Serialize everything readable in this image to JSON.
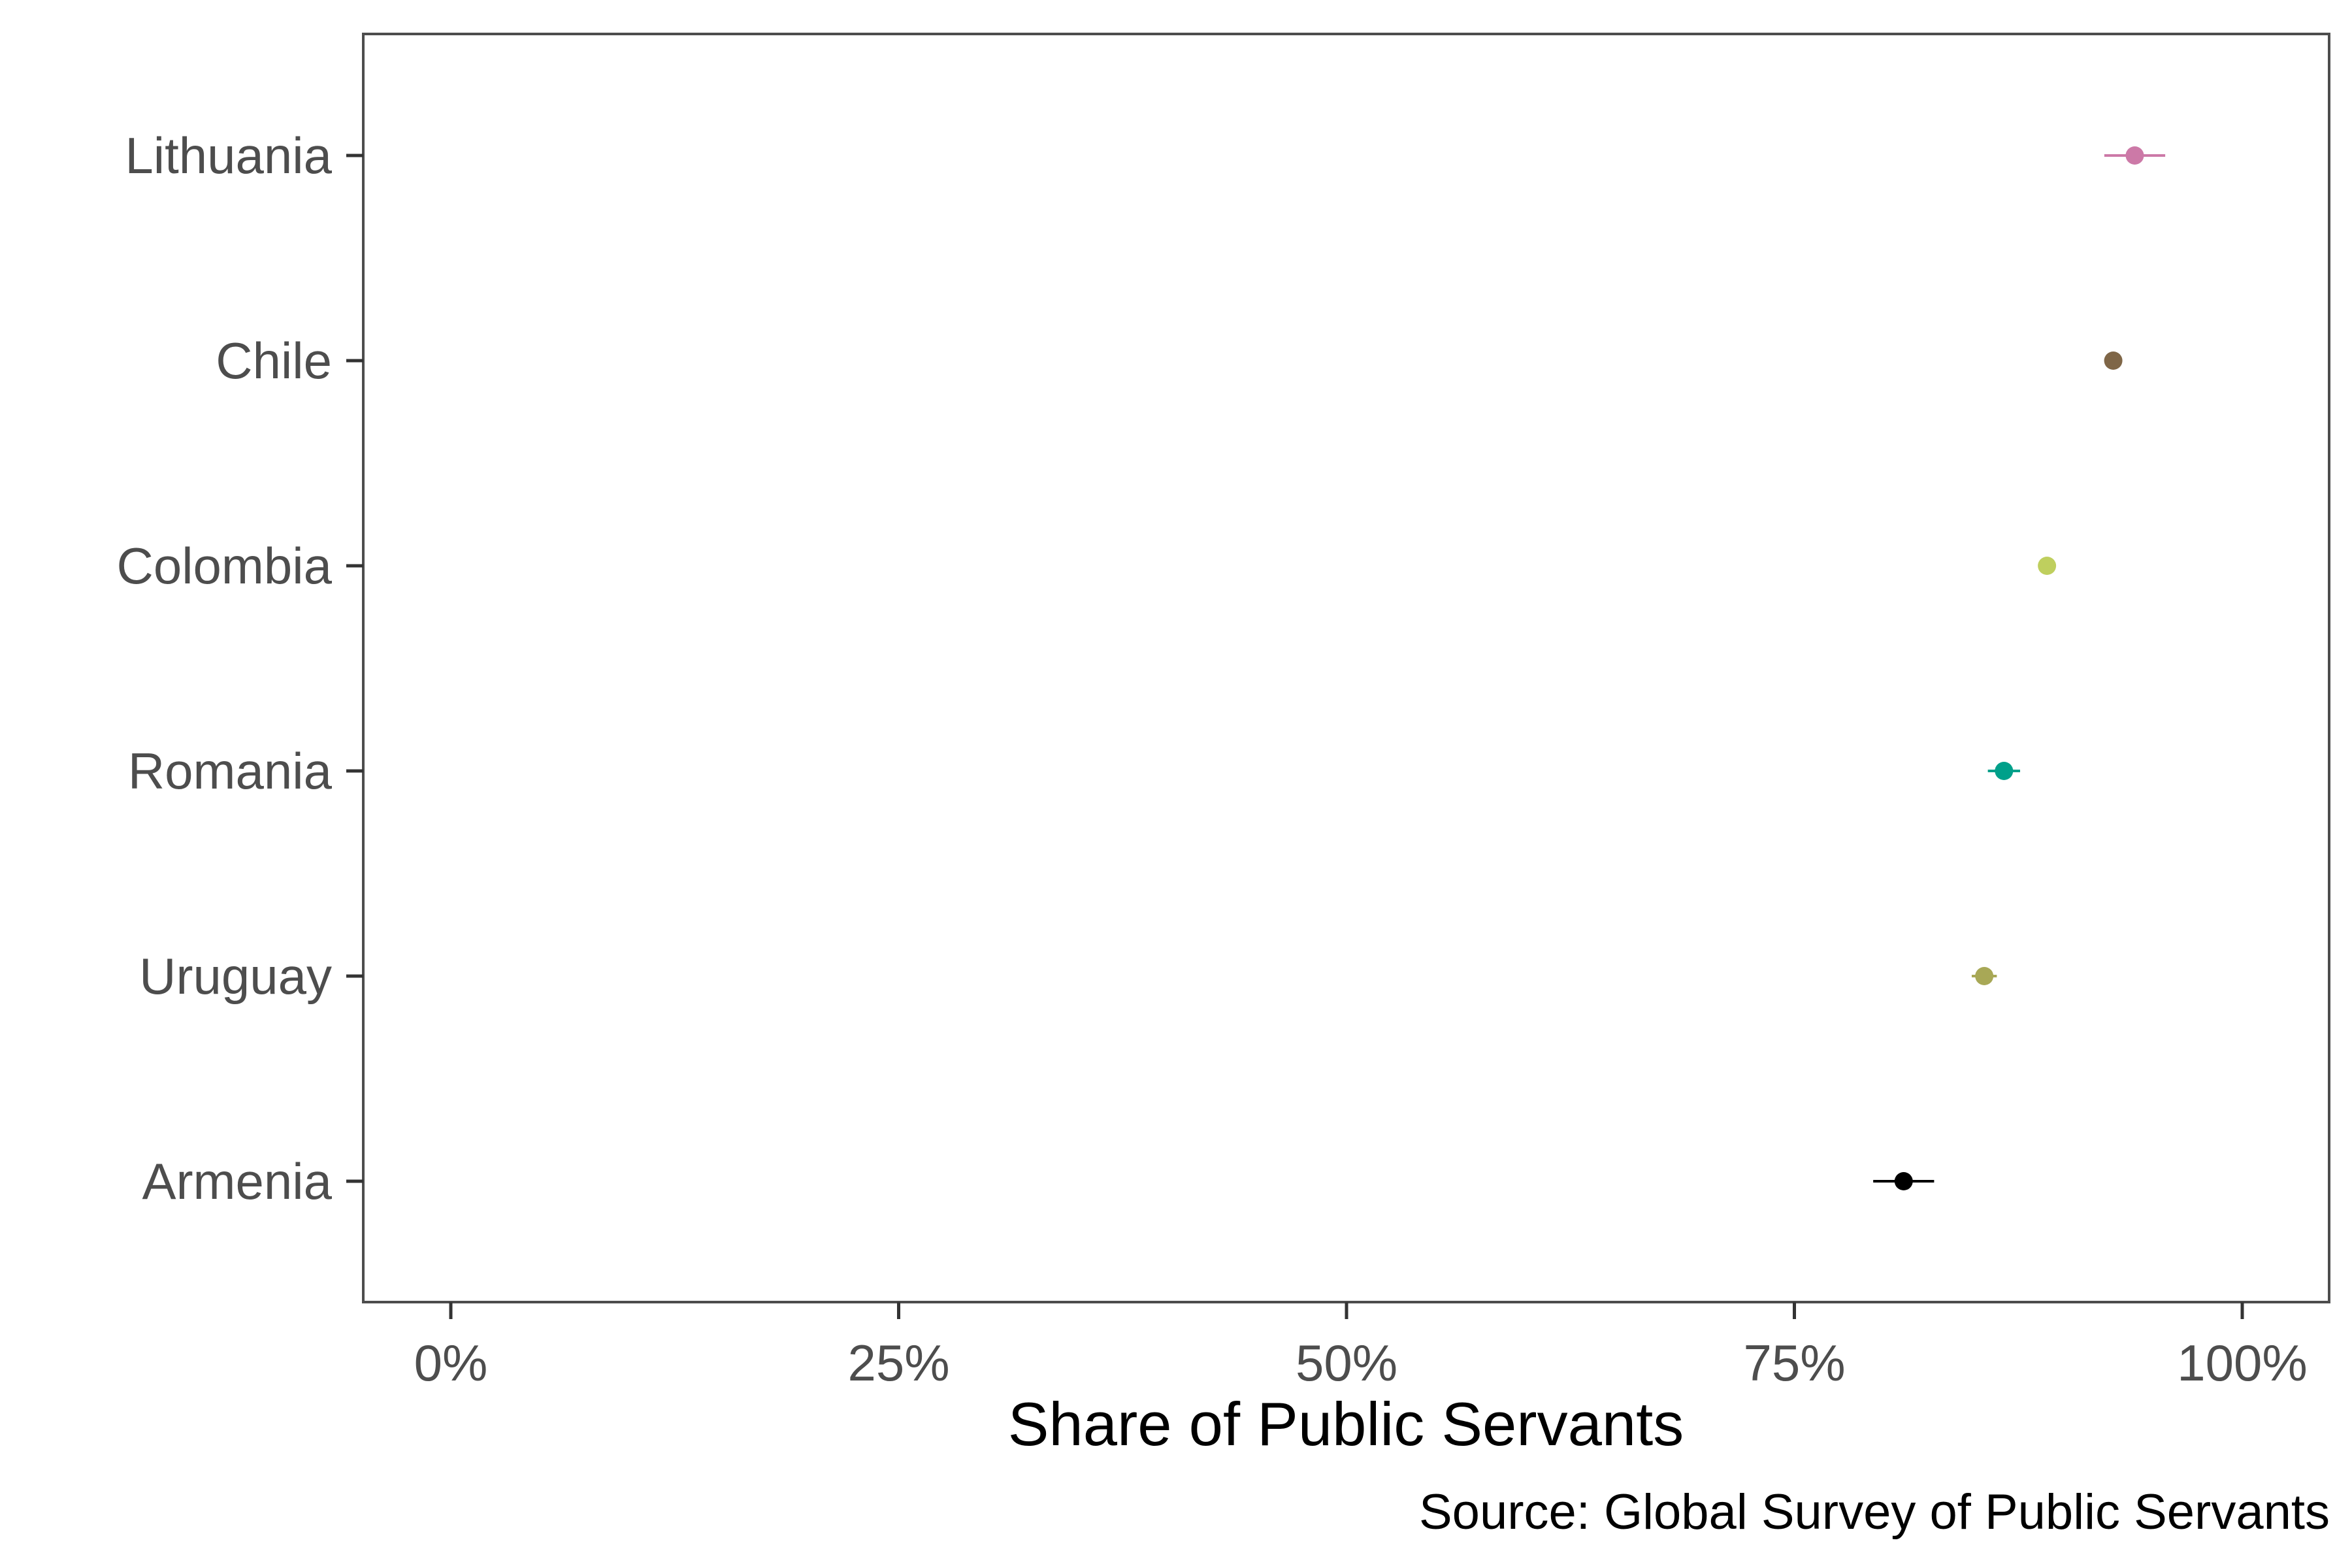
{
  "chart_data": {
    "type": "scatter",
    "subtype": "point-range (dot with error bars)",
    "title": "",
    "xlabel": "Share of Public Servants",
    "ylabel": "",
    "caption": "Source: Global Survey of Public Servants",
    "xlim": [
      -0.05,
      1.05
    ],
    "x_ticks": [
      0,
      0.25,
      0.5,
      0.75,
      1.0
    ],
    "x_tick_labels": [
      "0%",
      "25%",
      "50%",
      "75%",
      "100%"
    ],
    "grid": false,
    "legend": "none",
    "categories": [
      "Lithuania",
      "Chile",
      "Colombia",
      "Romania",
      "Uruguay",
      "Armenia"
    ],
    "points": [
      {
        "country": "Lithuania",
        "value": 0.94,
        "low": 0.923,
        "high": 0.957,
        "color": "#cc79a7"
      },
      {
        "country": "Chile",
        "value": 0.928,
        "low": 0.924,
        "high": 0.932,
        "color": "#7f6647"
      },
      {
        "country": "Colombia",
        "value": 0.891,
        "low": 0.887,
        "high": 0.895,
        "color": "#bfcf5e"
      },
      {
        "country": "Romania",
        "value": 0.867,
        "low": 0.858,
        "high": 0.876,
        "color": "#00a08a"
      },
      {
        "country": "Uruguay",
        "value": 0.856,
        "low": 0.849,
        "high": 0.863,
        "color": "#a8a856"
      },
      {
        "country": "Armenia",
        "value": 0.811,
        "low": 0.794,
        "high": 0.828,
        "color": "#000000"
      }
    ]
  }
}
